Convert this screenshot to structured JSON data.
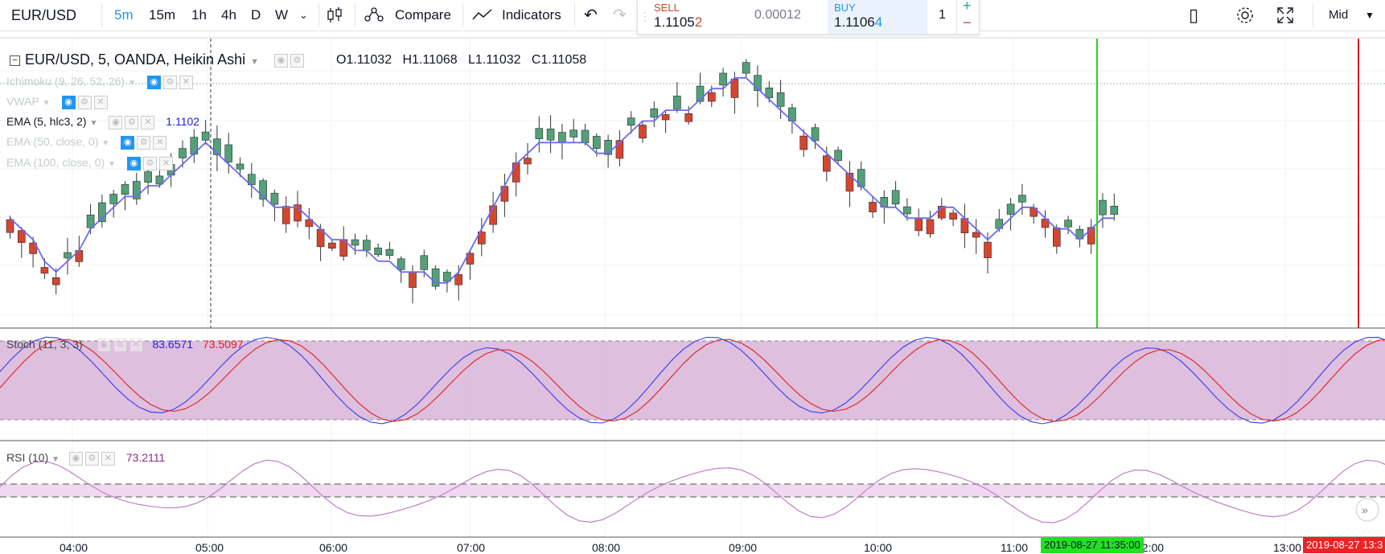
{
  "toolbar": {
    "symbol": "EUR/USD",
    "timeframes": [
      "5m",
      "15m",
      "1h",
      "4h",
      "D",
      "W"
    ],
    "active_timeframe": "5m",
    "compare_label": "Compare",
    "indicators_label": "Indicators",
    "price_type": "Mid"
  },
  "trade": {
    "sell_label": "SELL",
    "sell_price_main": "1.1105",
    "sell_price_last": "2",
    "spread": "0.00012",
    "buy_label": "BUY",
    "buy_price_main": "1.1106",
    "buy_price_last": "4",
    "quantity": "1",
    "plus": "+",
    "minus": "−"
  },
  "main": {
    "title": "EUR/USD, 5, OANDA, Heikin Ashi",
    "ohlc": {
      "o_label": "O",
      "o": "1.11032",
      "h_label": "H",
      "h": "1.11068",
      "l_label": "L",
      "l": "1.11032",
      "c_label": "C",
      "c": "1.11058"
    },
    "indicators": [
      {
        "label": "Ichimoku (9, 26, 52, 26)",
        "value": ""
      },
      {
        "label": "VWAP",
        "value": ""
      },
      {
        "label": "EMA (5, hlc3, 2)",
        "value": "1.1102"
      },
      {
        "label": "EMA (50, close, 0)",
        "value": ""
      },
      {
        "label": "EMA (100, close, 0)",
        "value": ""
      }
    ]
  },
  "stoch": {
    "label": "Stoch (11, 3, 3)",
    "k": "83.6571",
    "d": "73.5097"
  },
  "rsi": {
    "label": "RSI (10)",
    "value": "73.2111"
  },
  "time_axis": {
    "labels": [
      "04:00",
      "05:00",
      "06:00",
      "07:00",
      "08:00",
      "09:00",
      "10:00",
      "11:00",
      "12:00",
      "13:00"
    ],
    "highlight_green": "2019-08-27 11:35:00",
    "highlight_red": "2019-08-27 13:3"
  },
  "colors": {
    "accent": "#2196f3",
    "up": "#53a07a",
    "down": "#d5452f",
    "ema": "#6b6bf0",
    "stoch_band": "#d8b4d8",
    "rsi": "#c17fc7"
  },
  "chart_data": {
    "type": "candlestick",
    "up_candles": [
      5,
      7,
      8,
      9,
      10,
      11,
      12,
      13,
      14,
      15,
      16,
      17,
      18,
      19,
      20,
      21,
      22,
      23,
      30,
      31,
      32,
      33,
      34,
      36,
      37,
      38,
      46,
      47,
      48,
      49,
      50,
      51,
      52,
      54,
      56,
      58,
      60,
      62,
      64,
      65,
      66,
      67,
      68,
      70,
      72,
      74,
      76,
      77,
      78,
      86,
      87,
      88,
      92,
      93,
      95,
      96,
      97,
      98,
      99,
      100,
      101,
      102
    ],
    "ema_line": [
      1.1097,
      1.1096,
      1.1095,
      1.1093,
      1.1092,
      1.1093,
      1.1094,
      1.1096,
      1.1097,
      1.1098,
      1.1099,
      1.1099,
      1.11,
      1.11,
      1.1101,
      1.1102,
      1.1103,
      1.1104,
      1.1103,
      1.1102,
      1.1101,
      1.11,
      1.1099,
      1.1098,
      1.1098,
      1.1098,
      1.1097,
      1.1096,
      1.1095,
      1.1095,
      1.1094,
      1.1094,
      1.1093,
      1.1093,
      1.1092,
      1.1092,
      1.1092,
      1.1091,
      1.1091,
      1.1092,
      1.1094,
      1.1096,
      1.1098,
      1.11,
      1.1102,
      1.1103,
      1.1104,
      1.1104,
      1.1104,
      1.1104,
      1.1104,
      1.1103,
      1.1103,
      1.1104,
      1.1105,
      1.1106,
      1.1106,
      1.1107,
      1.1107,
      1.1107,
      1.1108,
      1.1109,
      1.1109,
      1.111,
      1.111,
      1.1109,
      1.1108,
      1.1107,
      1.1106,
      1.1105,
      1.1104,
      1.1103,
      1.1102,
      1.1101,
      1.11,
      1.1099,
      1.1098,
      1.1098,
      1.1097,
      1.1097,
      1.1097,
      1.1098,
      1.1098,
      1.1097,
      1.1096,
      1.1095,
      1.1096,
      1.1097,
      1.1098,
      1.1098,
      1.1097,
      1.1096,
      1.1096,
      1.1095,
      1.1096,
      1.1097,
      1.1097
    ]
  }
}
